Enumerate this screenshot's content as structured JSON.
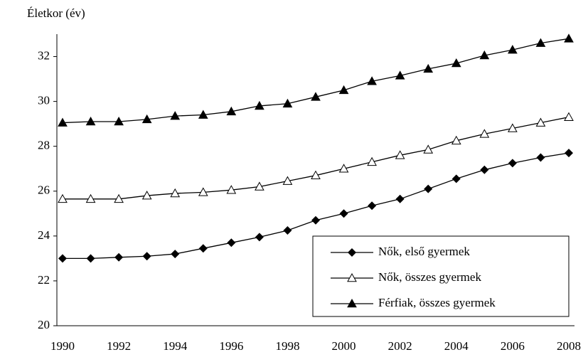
{
  "chart_data": {
    "type": "line",
    "y_axis_label": "Életkor (év)",
    "categories": [
      "1990",
      null,
      "1992",
      null,
      "1994",
      null,
      "1996",
      null,
      "1998",
      null,
      "2000",
      null,
      "2002",
      null,
      "2004",
      null,
      "2006",
      null,
      "2008"
    ],
    "series": [
      {
        "name": "Nők, első gyermek",
        "color": "#000000",
        "marker": "diamond",
        "values": [
          23.0,
          23.0,
          23.05,
          23.1,
          23.2,
          23.45,
          23.7,
          23.95,
          24.25,
          24.7,
          25.0,
          25.35,
          25.65,
          26.1,
          26.55,
          26.95,
          27.25,
          27.5,
          27.7
        ]
      },
      {
        "name": "Nők, összes gyermek",
        "color": "#000000",
        "marker": "triangle-open",
        "values": [
          25.65,
          25.65,
          25.65,
          25.8,
          25.9,
          25.95,
          26.05,
          26.2,
          26.45,
          26.7,
          27.0,
          27.3,
          27.6,
          27.85,
          28.25,
          28.55,
          28.8,
          29.05,
          29.3
        ]
      },
      {
        "name": "Férfiak, összes gyermek",
        "color": "#000000",
        "marker": "triangle",
        "values": [
          29.05,
          29.1,
          29.1,
          29.2,
          29.35,
          29.4,
          29.55,
          29.8,
          29.9,
          30.2,
          30.5,
          30.9,
          31.15,
          31.45,
          31.7,
          32.05,
          32.3,
          32.6,
          32.8
        ]
      }
    ],
    "ylim": [
      20,
      33
    ],
    "yticks": [
      20,
      22,
      24,
      26,
      28,
      30,
      32
    ],
    "grid": false,
    "legend": "lower right"
  }
}
